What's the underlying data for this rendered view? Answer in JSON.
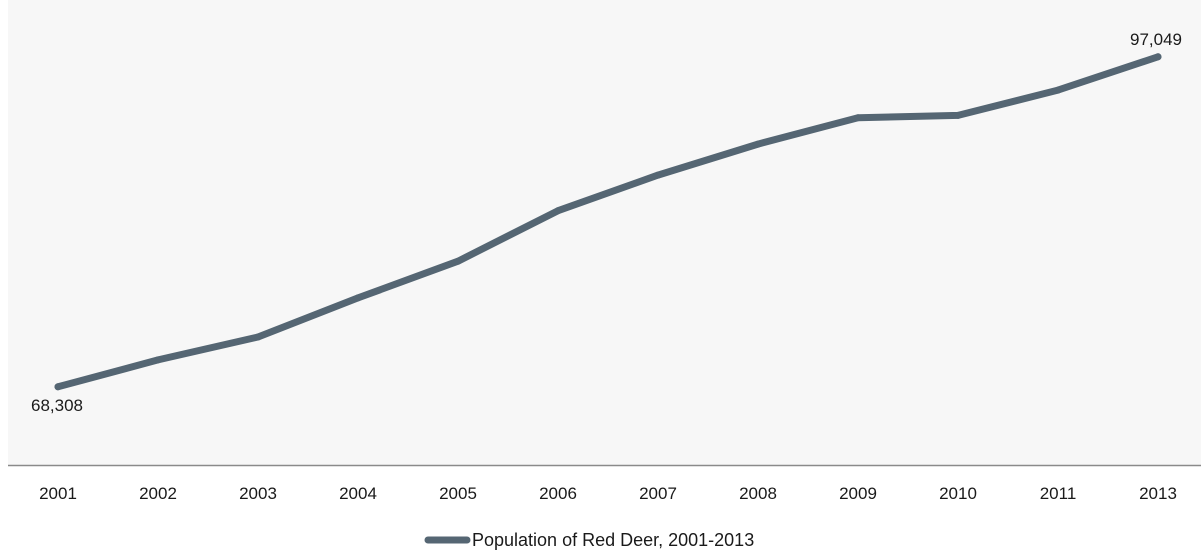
{
  "chart_data": {
    "type": "line",
    "categories": [
      "2001",
      "2002",
      "2003",
      "2004",
      "2005",
      "2006",
      "2007",
      "2008",
      "2009",
      "2010",
      "2011",
      "2013"
    ],
    "series": [
      {
        "name": "Population of Red Deer, 2001-2013",
        "values": [
          68308,
          70650,
          72650,
          76050,
          79250,
          83650,
          86750,
          89450,
          91750,
          91950,
          94150,
          97049
        ]
      }
    ],
    "data_labels": [
      {
        "category": "2001",
        "text": "68,308"
      },
      {
        "category": "2013",
        "text": "97,049"
      }
    ],
    "ylim": [
      61500,
      102000
    ],
    "grid": false,
    "legend_position": "bottom-center",
    "colors": {
      "plot_background": "#f7f7f7",
      "line": "#556673",
      "axis": "#8a8a8a"
    }
  }
}
